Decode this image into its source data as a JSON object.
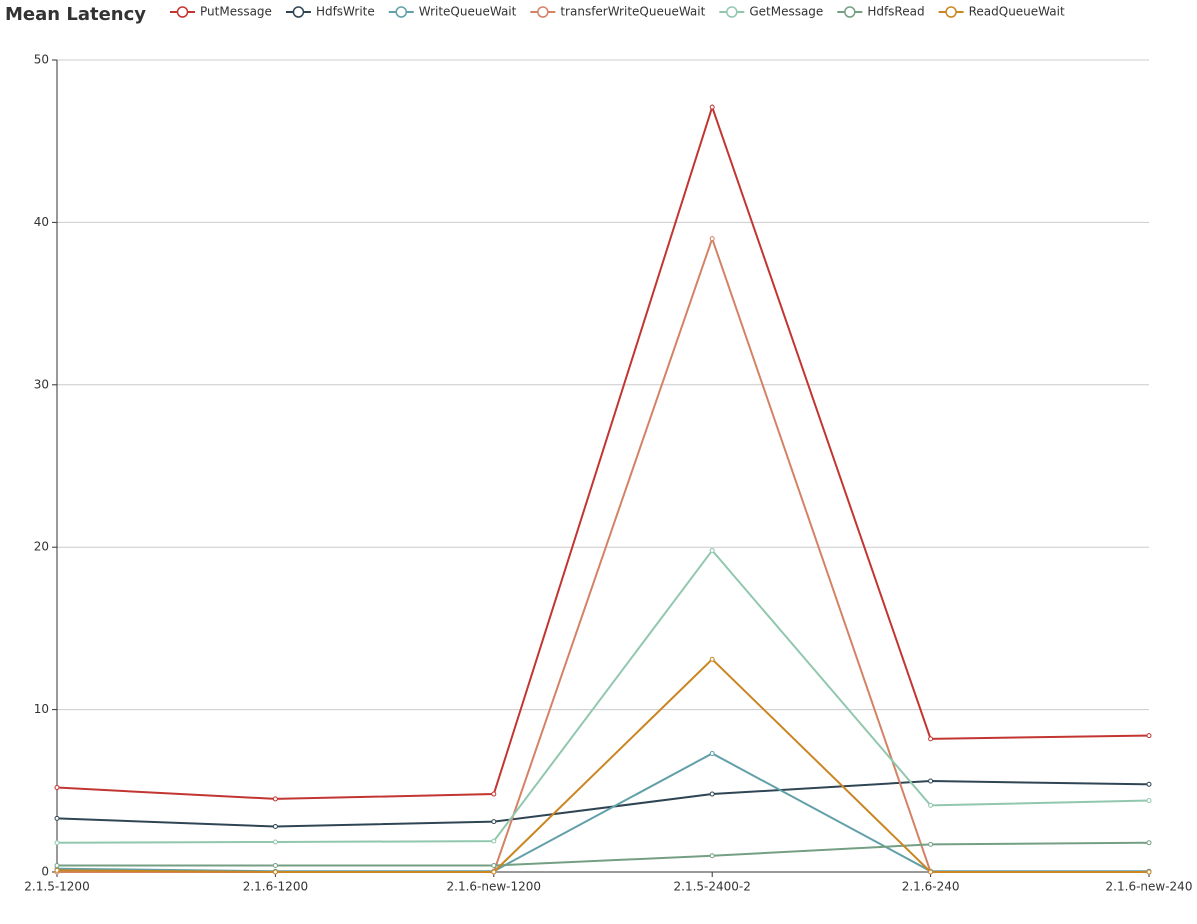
{
  "chart_data": {
    "type": "line",
    "title": "Mean Latency",
    "categories": [
      "2.1.5-1200",
      "2.1.6-1200",
      "2.1.6-new-1200",
      "2.1.5-2400-2",
      "2.1.6-240",
      "2.1.6-new-240"
    ],
    "series": [
      {
        "name": "PutMessage",
        "color": "#c23531",
        "values": [
          5.2,
          4.5,
          4.8,
          47.1,
          8.2,
          8.4
        ]
      },
      {
        "name": "HdfsWrite",
        "color": "#2f4554",
        "values": [
          3.3,
          2.8,
          3.1,
          4.8,
          5.6,
          5.4
        ]
      },
      {
        "name": "WriteQueueWait",
        "color": "#61a0a8",
        "values": [
          0.2,
          0.05,
          0.05,
          7.3,
          0.05,
          0.05
        ]
      },
      {
        "name": "transferWriteQueueWait",
        "color": "#d48265",
        "values": [
          0,
          0,
          0,
          39,
          0,
          0
        ]
      },
      {
        "name": "GetMessage",
        "color": "#91c7ae",
        "values": [
          1.8,
          1.85,
          1.9,
          19.8,
          4.1,
          4.4
        ]
      },
      {
        "name": "HdfsRead",
        "color": "#749f83",
        "values": [
          0.4,
          0.4,
          0.4,
          1.0,
          1.7,
          1.8
        ]
      },
      {
        "name": "ReadQueueWait",
        "color": "#ca8622",
        "values": [
          0.1,
          0,
          0,
          13.1,
          0,
          0
        ]
      }
    ],
    "ylim": [
      0,
      50
    ],
    "yticks": [
      0,
      10,
      20,
      30,
      40,
      50
    ],
    "grid": true,
    "legend": "top"
  }
}
